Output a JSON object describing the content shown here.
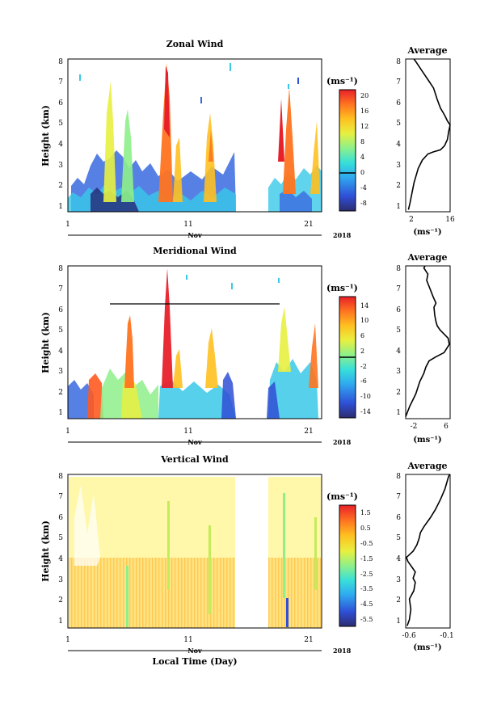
{
  "figure": {
    "xlabel": "Local Time (Day)",
    "month_label": "Nov",
    "year_label": "2018"
  },
  "chart_data": [
    {
      "type": "heatmap",
      "title": "Zonal Wind",
      "ylabel": "Height (km)",
      "x_ticks": [
        "1",
        "11",
        "21"
      ],
      "y_ticks": [
        "1",
        "2",
        "3",
        "4",
        "5",
        "6",
        "7",
        "8"
      ],
      "xlim": [
        1,
        23.3
      ],
      "ylim": [
        0.6,
        8
      ],
      "colorbar": {
        "unit": "(ms⁻¹)",
        "ticks": [
          "20",
          "16",
          "12",
          "8",
          "4",
          "0",
          "-4",
          "-8"
        ],
        "range": [
          -10,
          22
        ]
      },
      "average": {
        "title": "Average",
        "xlabel": "(ms⁻¹)",
        "x_ticks": [
          "2",
          "16"
        ],
        "xlim": [
          0,
          16
        ],
        "points": [
          [
            1.0,
            0.7
          ],
          [
            1.5,
            1.0
          ],
          [
            3.0,
            2.0
          ],
          [
            4.5,
            2.7
          ],
          [
            6.0,
            3.1
          ],
          [
            8.0,
            3.4
          ],
          [
            10.0,
            3.5
          ],
          [
            12.5,
            3.6
          ],
          [
            14.0,
            3.8
          ],
          [
            15.0,
            4.1
          ],
          [
            15.5,
            4.5
          ],
          [
            16.0,
            4.8
          ],
          [
            15.0,
            5.0
          ],
          [
            14.3,
            5.2
          ],
          [
            13.5,
            5.4
          ],
          [
            12.6,
            5.6
          ],
          [
            12.0,
            5.8
          ],
          [
            11.2,
            6.1
          ],
          [
            10.5,
            6.4
          ],
          [
            10.0,
            6.6
          ],
          [
            9.0,
            6.8
          ],
          [
            8.0,
            7.0
          ],
          [
            7.0,
            7.2
          ],
          [
            6.0,
            7.4
          ],
          [
            5.0,
            7.6
          ],
          [
            4.0,
            7.8
          ],
          [
            3.0,
            8.0
          ]
        ]
      }
    },
    {
      "type": "heatmap",
      "title": "Meridional Wind",
      "ylabel": "Height (km)",
      "x_ticks": [
        "1",
        "11",
        "21"
      ],
      "y_ticks": [
        "1",
        "2",
        "3",
        "4",
        "5",
        "6",
        "7",
        "8"
      ],
      "xlim": [
        1,
        23.3
      ],
      "ylim": [
        0.6,
        8
      ],
      "colorbar": {
        "unit": "(ms⁻¹)",
        "ticks": [
          "14",
          "10",
          "6",
          "2",
          "-2",
          "-6",
          "-10",
          "-14"
        ],
        "range": [
          -16,
          16
        ]
      },
      "average": {
        "title": "Average",
        "xlabel": "(ms⁻¹)",
        "x_ticks": [
          "-2",
          "6"
        ],
        "xlim": [
          -4,
          7
        ],
        "points": [
          [
            -4.0,
            0.7
          ],
          [
            -3.0,
            1.2
          ],
          [
            -1.5,
            1.8
          ],
          [
            -0.5,
            2.4
          ],
          [
            0.5,
            2.8
          ],
          [
            1.0,
            3.1
          ],
          [
            1.8,
            3.4
          ],
          [
            3.5,
            3.6
          ],
          [
            5.5,
            3.8
          ],
          [
            6.8,
            4.2
          ],
          [
            6.5,
            4.5
          ],
          [
            5.5,
            4.7
          ],
          [
            4.5,
            4.9
          ],
          [
            3.8,
            5.1
          ],
          [
            3.5,
            5.3
          ],
          [
            3.2,
            5.6
          ],
          [
            3.0,
            6.0
          ],
          [
            3.5,
            6.2
          ],
          [
            2.8,
            6.5
          ],
          [
            2.2,
            6.8
          ],
          [
            1.8,
            7.0
          ],
          [
            1.2,
            7.3
          ],
          [
            1.5,
            7.6
          ],
          [
            0.5,
            7.9
          ],
          [
            0.8,
            8.0
          ]
        ]
      }
    },
    {
      "type": "heatmap",
      "title": "Vertical Wind",
      "ylabel": "Height (km)",
      "x_ticks": [
        "1",
        "11",
        "21"
      ],
      "y_ticks": [
        "1",
        "2",
        "3",
        "4",
        "5",
        "6",
        "7",
        "8"
      ],
      "xlim": [
        1,
        23.3
      ],
      "ylim": [
        0.6,
        8
      ],
      "colorbar": {
        "unit": "(ms⁻¹)",
        "ticks": [
          "1.5",
          "0.5",
          "-0.5",
          "-1.5",
          "-2.5",
          "-3.5",
          "-4.5",
          "-5.5"
        ],
        "range": [
          -6,
          2
        ]
      },
      "average": {
        "title": "Average",
        "xlabel": "(ms⁻¹)",
        "x_ticks": [
          "-0.6",
          "-0.1"
        ],
        "xlim": [
          -0.65,
          -0.05
        ],
        "points": [
          [
            -0.63,
            0.7
          ],
          [
            -0.6,
            1.0
          ],
          [
            -0.58,
            1.5
          ],
          [
            -0.6,
            2.0
          ],
          [
            -0.54,
            2.4
          ],
          [
            -0.52,
            2.8
          ],
          [
            -0.55,
            3.0
          ],
          [
            -0.52,
            3.3
          ],
          [
            -0.56,
            3.5
          ],
          [
            -0.62,
            3.8
          ],
          [
            -0.64,
            4.0
          ],
          [
            -0.55,
            4.3
          ],
          [
            -0.5,
            4.6
          ],
          [
            -0.47,
            4.9
          ],
          [
            -0.45,
            5.2
          ],
          [
            -0.4,
            5.5
          ],
          [
            -0.32,
            5.9
          ],
          [
            -0.25,
            6.3
          ],
          [
            -0.18,
            6.8
          ],
          [
            -0.12,
            7.3
          ],
          [
            -0.08,
            7.8
          ],
          [
            -0.06,
            8.0
          ]
        ]
      }
    }
  ]
}
